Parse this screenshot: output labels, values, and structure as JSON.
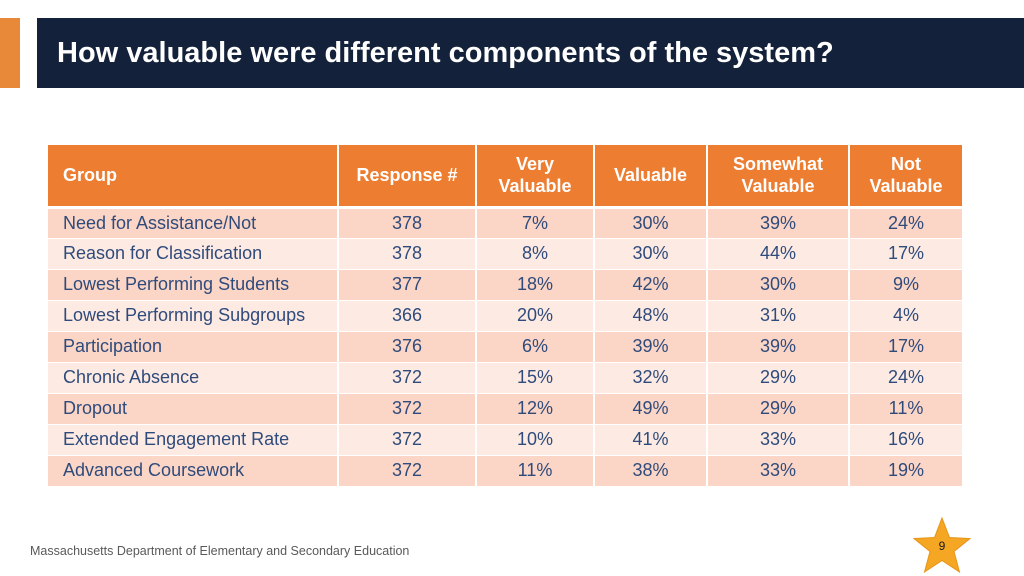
{
  "slide": {
    "title": "How valuable were different components of the system?",
    "footer": "Massachusetts Department of Elementary and Secondary Education",
    "page_number": "9"
  },
  "colors": {
    "title_banner": "#14213a",
    "accent": "#e8893a",
    "table_header": "#ed7d31",
    "row_odd": "#fbd5c5",
    "row_even": "#fdebe3",
    "cell_text": "#2f4b7c",
    "star": "#f5a623"
  },
  "table": {
    "headers": [
      "Group",
      "Response #",
      "Very\nValuable",
      "Valuable",
      "Somewhat\nValuable",
      "Not\nValuable"
    ],
    "rows": [
      [
        "Need for Assistance/Not",
        "378",
        "7%",
        "30%",
        "39%",
        "24%"
      ],
      [
        "Reason for Classification",
        "378",
        "8%",
        "30%",
        "44%",
        "17%"
      ],
      [
        "Lowest Performing Students",
        "377",
        "18%",
        "42%",
        "30%",
        "9%"
      ],
      [
        "Lowest Performing Subgroups",
        "366",
        "20%",
        "48%",
        "31%",
        "4%"
      ],
      [
        "Participation",
        "376",
        "6%",
        "39%",
        "39%",
        "17%"
      ],
      [
        "Chronic Absence",
        "372",
        "15%",
        "32%",
        "29%",
        "24%"
      ],
      [
        "Dropout",
        "372",
        "12%",
        "49%",
        "29%",
        "11%"
      ],
      [
        "Extended Engagement Rate",
        "372",
        "10%",
        "41%",
        "33%",
        "16%"
      ],
      [
        "Advanced Coursework",
        "372",
        "11%",
        "38%",
        "33%",
        "19%"
      ]
    ]
  }
}
